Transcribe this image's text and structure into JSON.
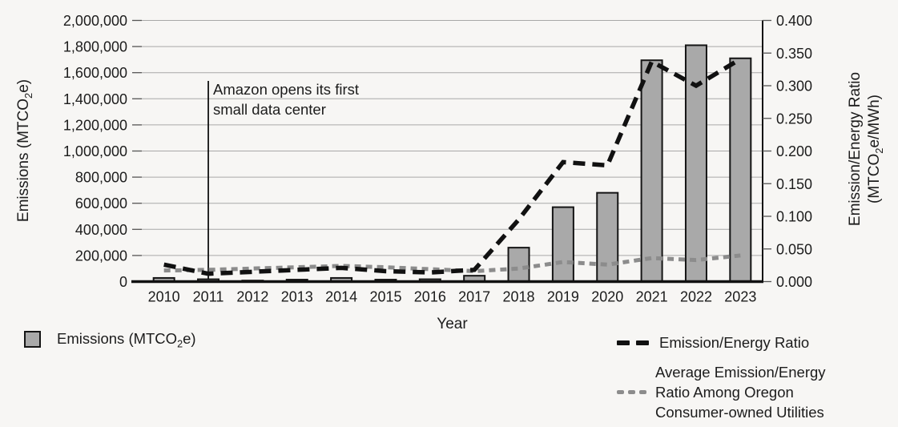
{
  "chart_data": {
    "type": "combo",
    "x": [
      2010,
      2011,
      2012,
      2013,
      2014,
      2015,
      2016,
      2017,
      2018,
      2019,
      2020,
      2021,
      2022,
      2023
    ],
    "series": [
      {
        "name": "Emissions (MTCO2e)",
        "type": "bar",
        "axis": "left",
        "values": [
          28000,
          18000,
          8000,
          15000,
          28000,
          15000,
          18000,
          45000,
          260000,
          570000,
          680000,
          1695000,
          1810000,
          1710000
        ]
      },
      {
        "name": "Emission/Energy Ratio",
        "type": "line",
        "axis": "right",
        "dash": "long",
        "values": [
          0.026,
          0.012,
          0.015,
          0.018,
          0.021,
          0.016,
          0.014,
          0.018,
          0.095,
          0.183,
          0.178,
          0.337,
          0.3,
          0.341
        ]
      },
      {
        "name": "Average Emission/Energy Ratio Among Oregon Consumer-owned Utilities",
        "type": "line",
        "axis": "right",
        "dash": "short",
        "values": [
          0.017,
          0.018,
          0.02,
          0.022,
          0.024,
          0.022,
          0.019,
          0.016,
          0.02,
          0.03,
          0.026,
          0.036,
          0.033,
          0.04
        ]
      }
    ],
    "left_axis": {
      "min": 0,
      "max": 2000000,
      "step": 200000,
      "tick_labels": [
        "0",
        "200,000",
        "400,000",
        "600,000",
        "800,000",
        "1,000,000",
        "1,200,000",
        "1,400,000",
        "1,600,000",
        "1,800,000",
        "2,000,000"
      ]
    },
    "right_axis": {
      "min": 0,
      "max": 0.4,
      "step": 0.05,
      "tick_labels": [
        "0.000",
        "0.050",
        "0.100",
        "0.150",
        "0.200",
        "0.250",
        "0.300",
        "0.350",
        "0.400"
      ]
    },
    "grid": true,
    "legend_position": "bottom",
    "colors": {
      "bar_fill": "#a9a9a9",
      "bar_stroke": "#151515",
      "ratio_line": "#111111",
      "avg_line": "#8c8c8c",
      "grid_line": "#a8a8a8",
      "axis_line": "#111111",
      "text": "#1c1c1c"
    }
  },
  "annotation": {
    "year": 2011,
    "line1": "Amazon opens its first",
    "line2": "small data center"
  },
  "axes": {
    "x_title": "Year",
    "left_label": {
      "pre": "Emissions (MTCO",
      "sub": "2",
      "post": "e)"
    },
    "right_label_line1": "Emission/Energy Ratio",
    "right_label_line2": {
      "pre": "(MTCO",
      "sub": "2",
      "post": "e/MWh)"
    }
  },
  "legend": {
    "emissions": {
      "pre": "Emissions (MTCO",
      "sub": "2",
      "post": "e)"
    },
    "ratio_label": "Emission/Energy Ratio",
    "avg_line1": "Average Emission/Energy",
    "avg_line2": "Ratio Among Oregon",
    "avg_line3": "Consumer-owned Utilities"
  }
}
